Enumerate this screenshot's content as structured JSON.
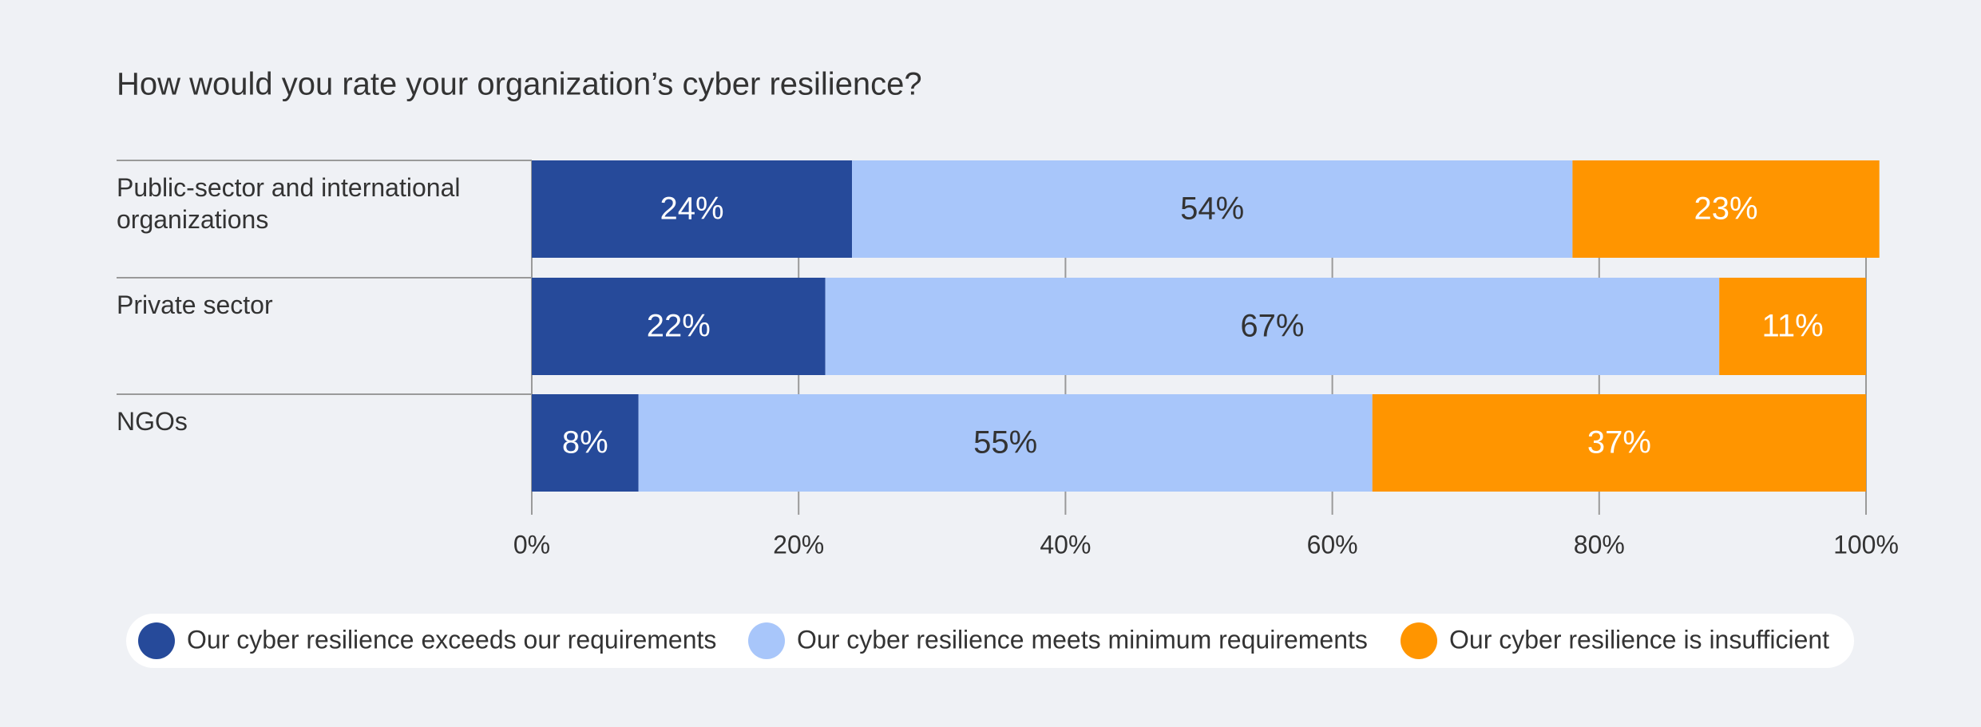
{
  "chart_data": {
    "type": "stacked-bar-horizontal",
    "title": "How would you rate your organization’s cyber resilience?",
    "categories": [
      "Public-sector and international organizations",
      "Private sector",
      "NGOs"
    ],
    "series": [
      {
        "name": "Our cyber resilience exceeds our requirements",
        "color": "#264a9a",
        "label_color": "#ffffff",
        "values": [
          24,
          22,
          8
        ],
        "value_labels": [
          "24%",
          "22%",
          "8%"
        ]
      },
      {
        "name": "Our cyber resilience meets minimum requirements",
        "color": "#a8c6fa",
        "label_color": "#333333",
        "values": [
          54,
          67,
          55
        ],
        "value_labels": [
          "54%",
          "67%",
          "55%"
        ]
      },
      {
        "name": "Our cyber resilience is insufficient",
        "color": "#ff9500",
        "label_color": "#ffffff",
        "values": [
          23,
          11,
          37
        ],
        "value_labels": [
          "23%",
          "11%",
          "37%"
        ]
      }
    ],
    "xlim": [
      0,
      100
    ],
    "xticks": [
      {
        "value": 0,
        "label": "0%"
      },
      {
        "value": 20,
        "label": "20%"
      },
      {
        "value": 40,
        "label": "40%"
      },
      {
        "value": 60,
        "label": "60%"
      },
      {
        "value": 80,
        "label": "80%"
      },
      {
        "value": 100,
        "label": "100%"
      }
    ],
    "grid": true,
    "legend": "bottom"
  }
}
